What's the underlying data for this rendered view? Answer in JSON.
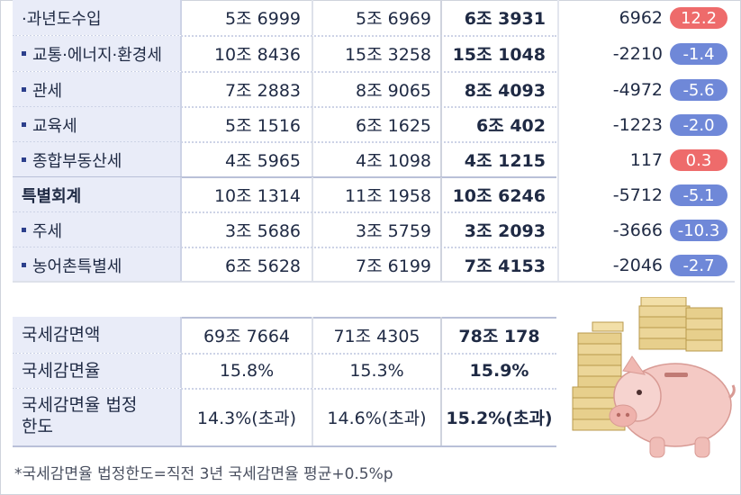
{
  "tax_table": {
    "rows": [
      {
        "label": "·과년도수입",
        "bullet": false,
        "bold": false,
        "v1": "5조 6999",
        "v2": "5조 6969",
        "v3": "6조 3931",
        "change": "6962",
        "rate": "12.2",
        "rate_sign": "pos"
      },
      {
        "label": "교통·에너지·환경세",
        "bullet": true,
        "bold": false,
        "v1": "10조 8436",
        "v2": "15조 3258",
        "v3": "15조 1048",
        "change": "-2210",
        "rate": "-1.4",
        "rate_sign": "neg"
      },
      {
        "label": "관세",
        "bullet": true,
        "bold": false,
        "v1": "7조 2883",
        "v2": "8조 9065",
        "v3": "8조 4093",
        "change": "-4972",
        "rate": "-5.6",
        "rate_sign": "neg"
      },
      {
        "label": "교육세",
        "bullet": true,
        "bold": false,
        "v1": "5조 1516",
        "v2": "6조 1625",
        "v3": "6조 402",
        "change": "-1223",
        "rate": "-2.0",
        "rate_sign": "neg"
      },
      {
        "label": "종합부동산세",
        "bullet": true,
        "bold": false,
        "v1": "4조 5965",
        "v2": "4조 1098",
        "v3": "4조 1215",
        "change": "117",
        "rate": "0.3",
        "rate_sign": "pos"
      },
      {
        "label": "특별회계",
        "bullet": false,
        "bold": true,
        "v1": "10조 1314",
        "v2": "11조 1958",
        "v3": "10조 6246",
        "change": "-5712",
        "rate": "-5.1",
        "rate_sign": "neg"
      },
      {
        "label": "주세",
        "bullet": true,
        "bold": false,
        "v1": "3조 5686",
        "v2": "3조 5759",
        "v3": "3조 2093",
        "change": "-3666",
        "rate": "-10.3",
        "rate_sign": "neg"
      },
      {
        "label": "농어촌특별세",
        "bullet": true,
        "bold": false,
        "v1": "6조 5628",
        "v2": "7조 6199",
        "v3": "7조 4153",
        "change": "-2046",
        "rate": "-2.7",
        "rate_sign": "neg"
      }
    ]
  },
  "exemption_table": {
    "rows": [
      {
        "label": "국세감면액",
        "v1": "69조 7664",
        "v2": "71조 4305",
        "v3": "78조 178"
      },
      {
        "label": "국세감면율",
        "v1": "15.8%",
        "v2": "15.3%",
        "v3": "15.9%"
      },
      {
        "label_line1": "국세감면율 법정",
        "label_line2": "한도",
        "v1": "14.3%(초과)",
        "v2": "14.6%(초과)",
        "v3": "15.2%(초과)"
      }
    ]
  },
  "footnote": "*국세감면율 법정한도=직전 3년 국세감면율 평균+0.5%p",
  "colors": {
    "label_bg": "#e9ecf8",
    "neg_pill": "#6f88d8",
    "pos_pill": "#ee6b6b",
    "text": "#1f2a44"
  },
  "illustration": "piggy-bank-with-money-stacks-icon"
}
